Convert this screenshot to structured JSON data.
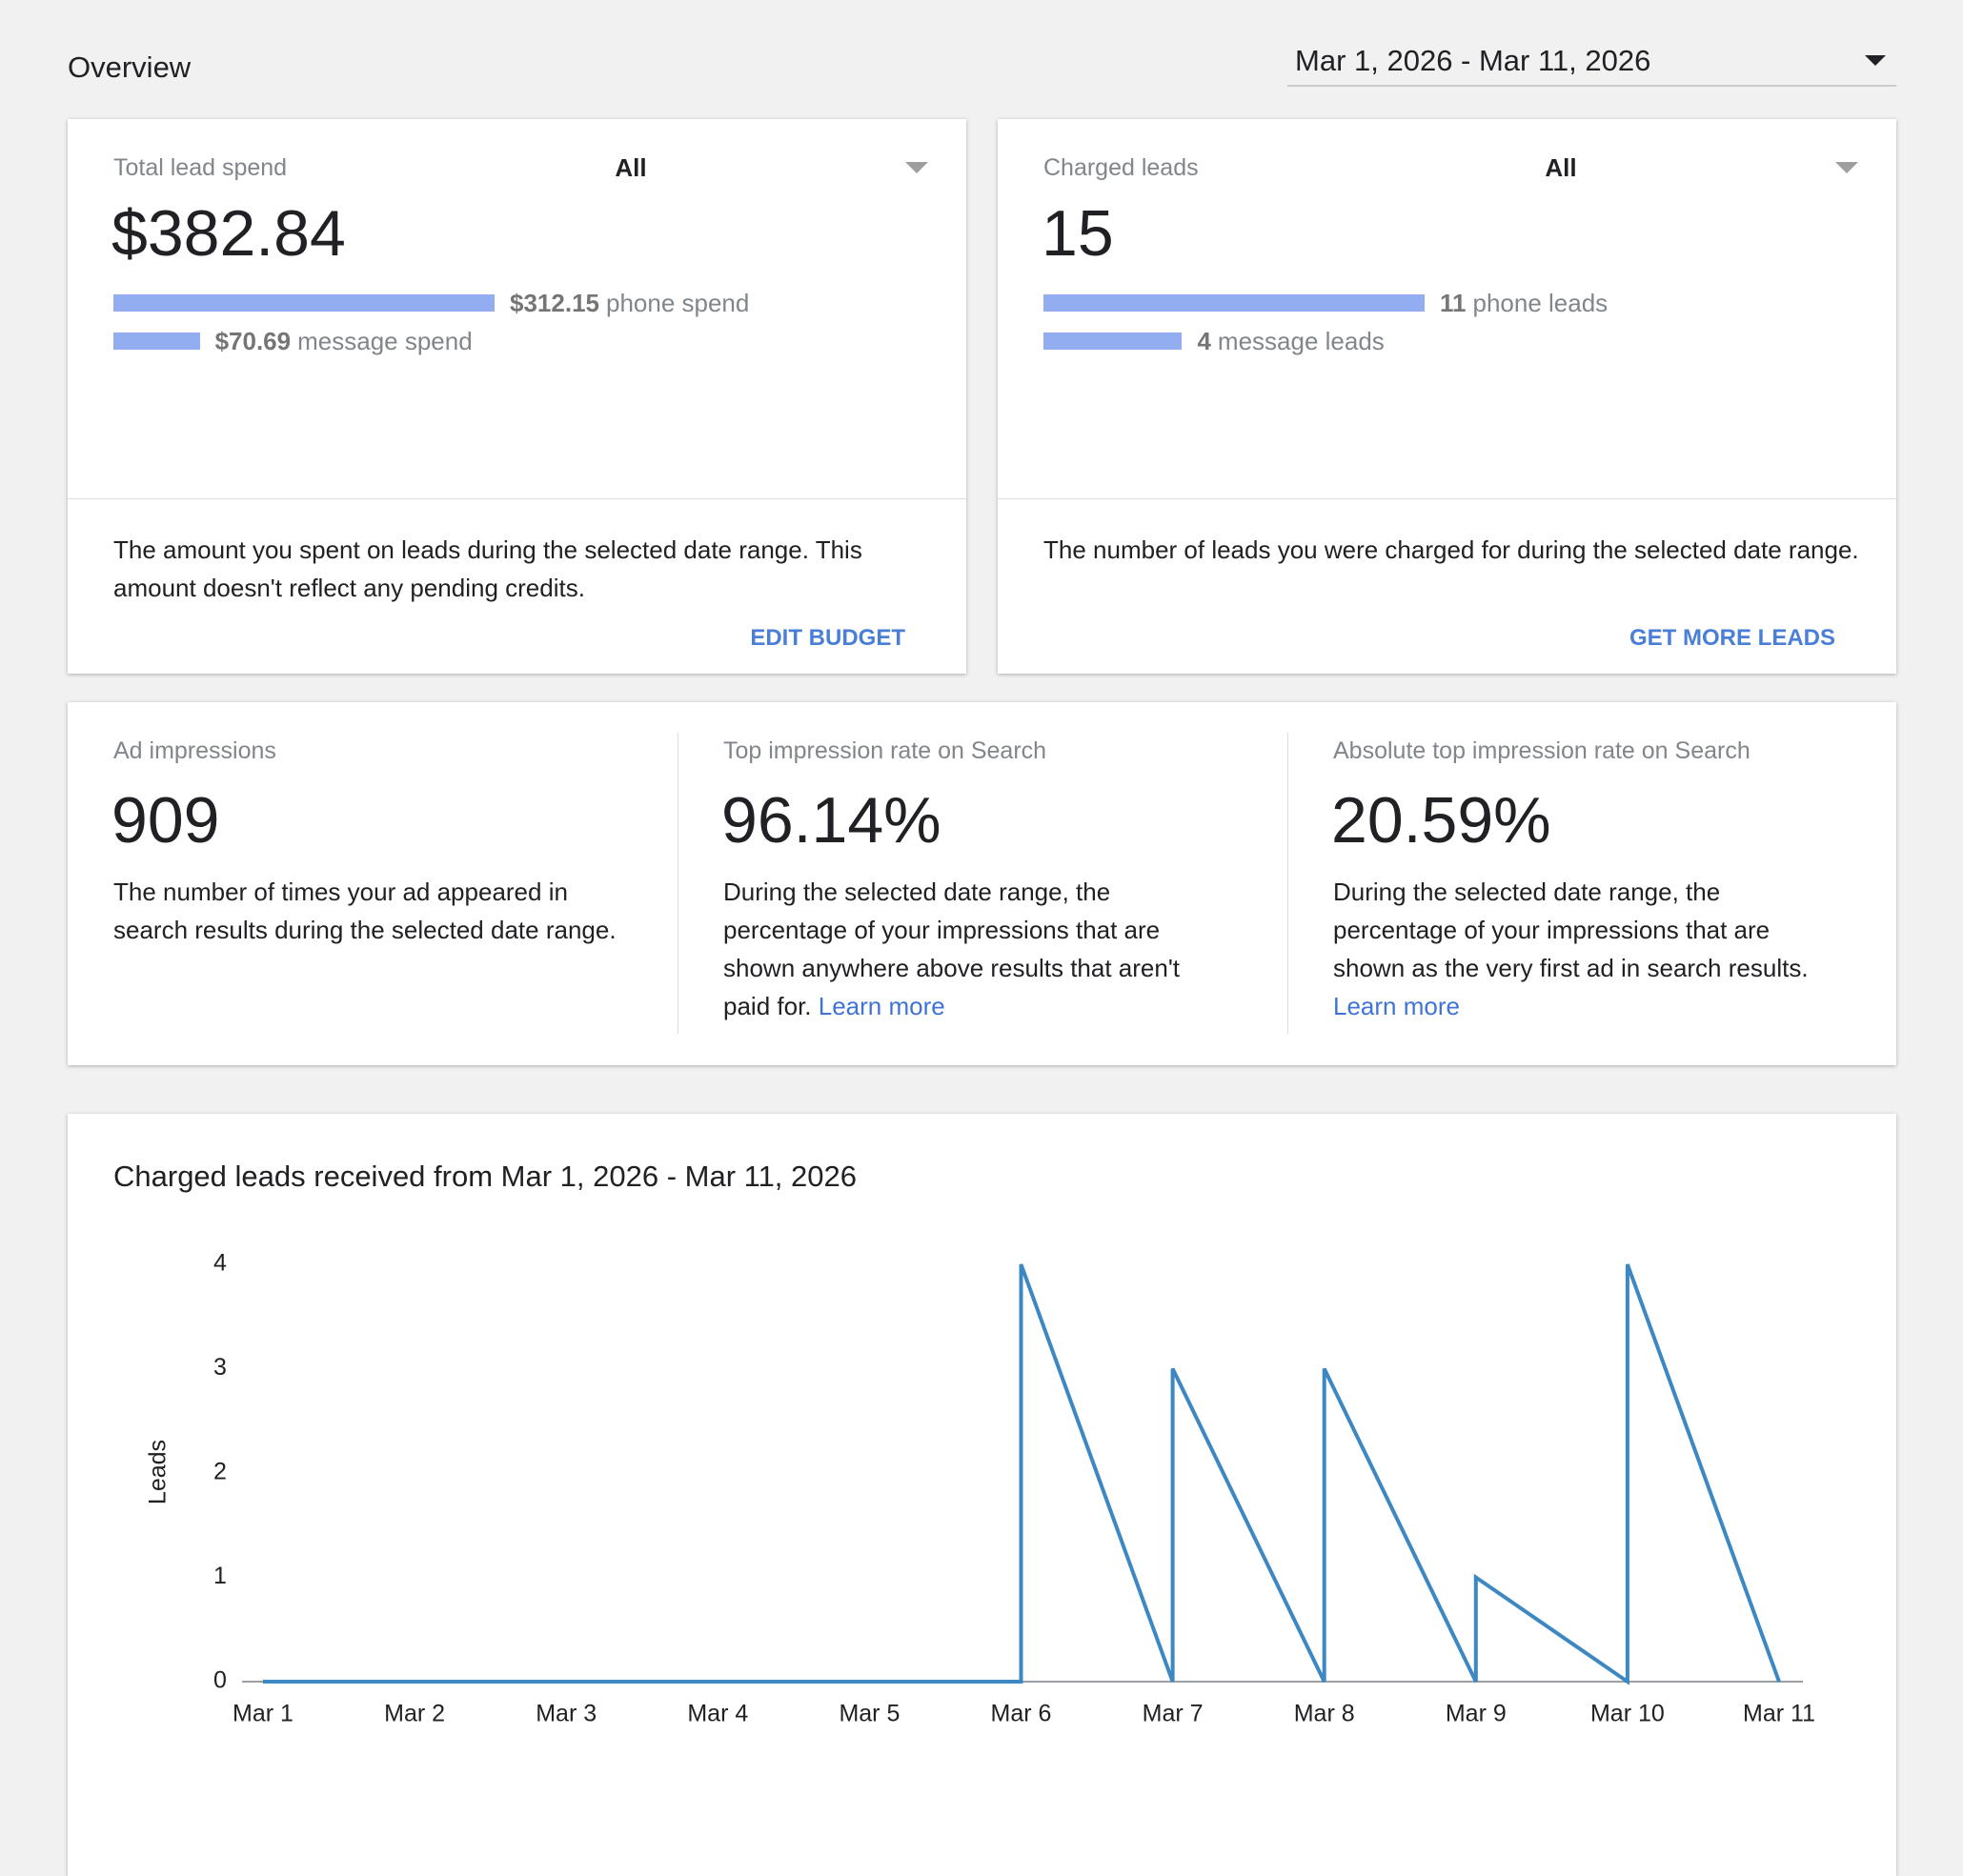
{
  "header": {
    "title": "Overview",
    "date_range": "Mar 1, 2026 - Mar 11, 2026"
  },
  "summary_cards": [
    {
      "label": "Total lead spend",
      "filter": "All",
      "value": "$382.84",
      "breakdown": [
        {
          "value": 312.15,
          "value_label": "$312.15",
          "label": "phone spend"
        },
        {
          "value": 70.69,
          "value_label": "$70.69",
          "label": "message spend"
        }
      ],
      "description": "The amount you spent on leads during the selected date range. This amount doesn't reflect any pending credits.",
      "action": "EDIT BUDGET"
    },
    {
      "label": "Charged leads",
      "filter": "All",
      "value": "15",
      "breakdown": [
        {
          "value": 11,
          "label": "phone leads"
        },
        {
          "value": 4,
          "label": "message leads"
        }
      ],
      "description": "The number of leads you were charged for during the selected date range.",
      "action": "GET MORE LEADS"
    }
  ],
  "metrics": [
    {
      "label": "Ad impressions",
      "value": "909",
      "description": "The number of times your ad appeared in search results during the selected date range."
    },
    {
      "label": "Top impression rate on Search",
      "value": "96.14%",
      "description": "During the selected date range, the percentage of your impressions that are shown anywhere above results that aren't paid for.",
      "link": "Learn more"
    },
    {
      "label": "Absolute top impression rate on Search",
      "value": "20.59%",
      "description": "During the selected date range, the percentage of your impressions that are shown as the very first ad in search results.",
      "link": "Learn more"
    }
  ],
  "chart_data": {
    "type": "line",
    "title": "Charged leads received from Mar 1, 2026 - Mar 11, 2026",
    "y_label": "Leads",
    "categories": [
      "Mar 1",
      "Mar 2",
      "Mar 3",
      "Mar 4",
      "Mar 5",
      "Mar 6",
      "Mar 7",
      "Mar 8",
      "Mar 9",
      "Mar 10",
      "Mar 11"
    ],
    "x": [
      "Mar 1",
      "Mar 2",
      "Mar 3",
      "Mar 4",
      "Mar 5",
      "Mar 6",
      "Mar 6",
      "Mar 7",
      "Mar 7",
      "Mar 8",
      "Mar 8",
      "Mar 9",
      "Mar 9",
      "Mar 10",
      "Mar 10",
      "Mar 11"
    ],
    "values": [
      0,
      0,
      0,
      0,
      0,
      0,
      4,
      0,
      3,
      0,
      3,
      0,
      1,
      0,
      4,
      0
    ],
    "color": "#3d88c3",
    "ylim": [
      0,
      4
    ],
    "yticks": [
      0,
      1,
      2,
      3,
      4
    ],
    "grid": false
  }
}
